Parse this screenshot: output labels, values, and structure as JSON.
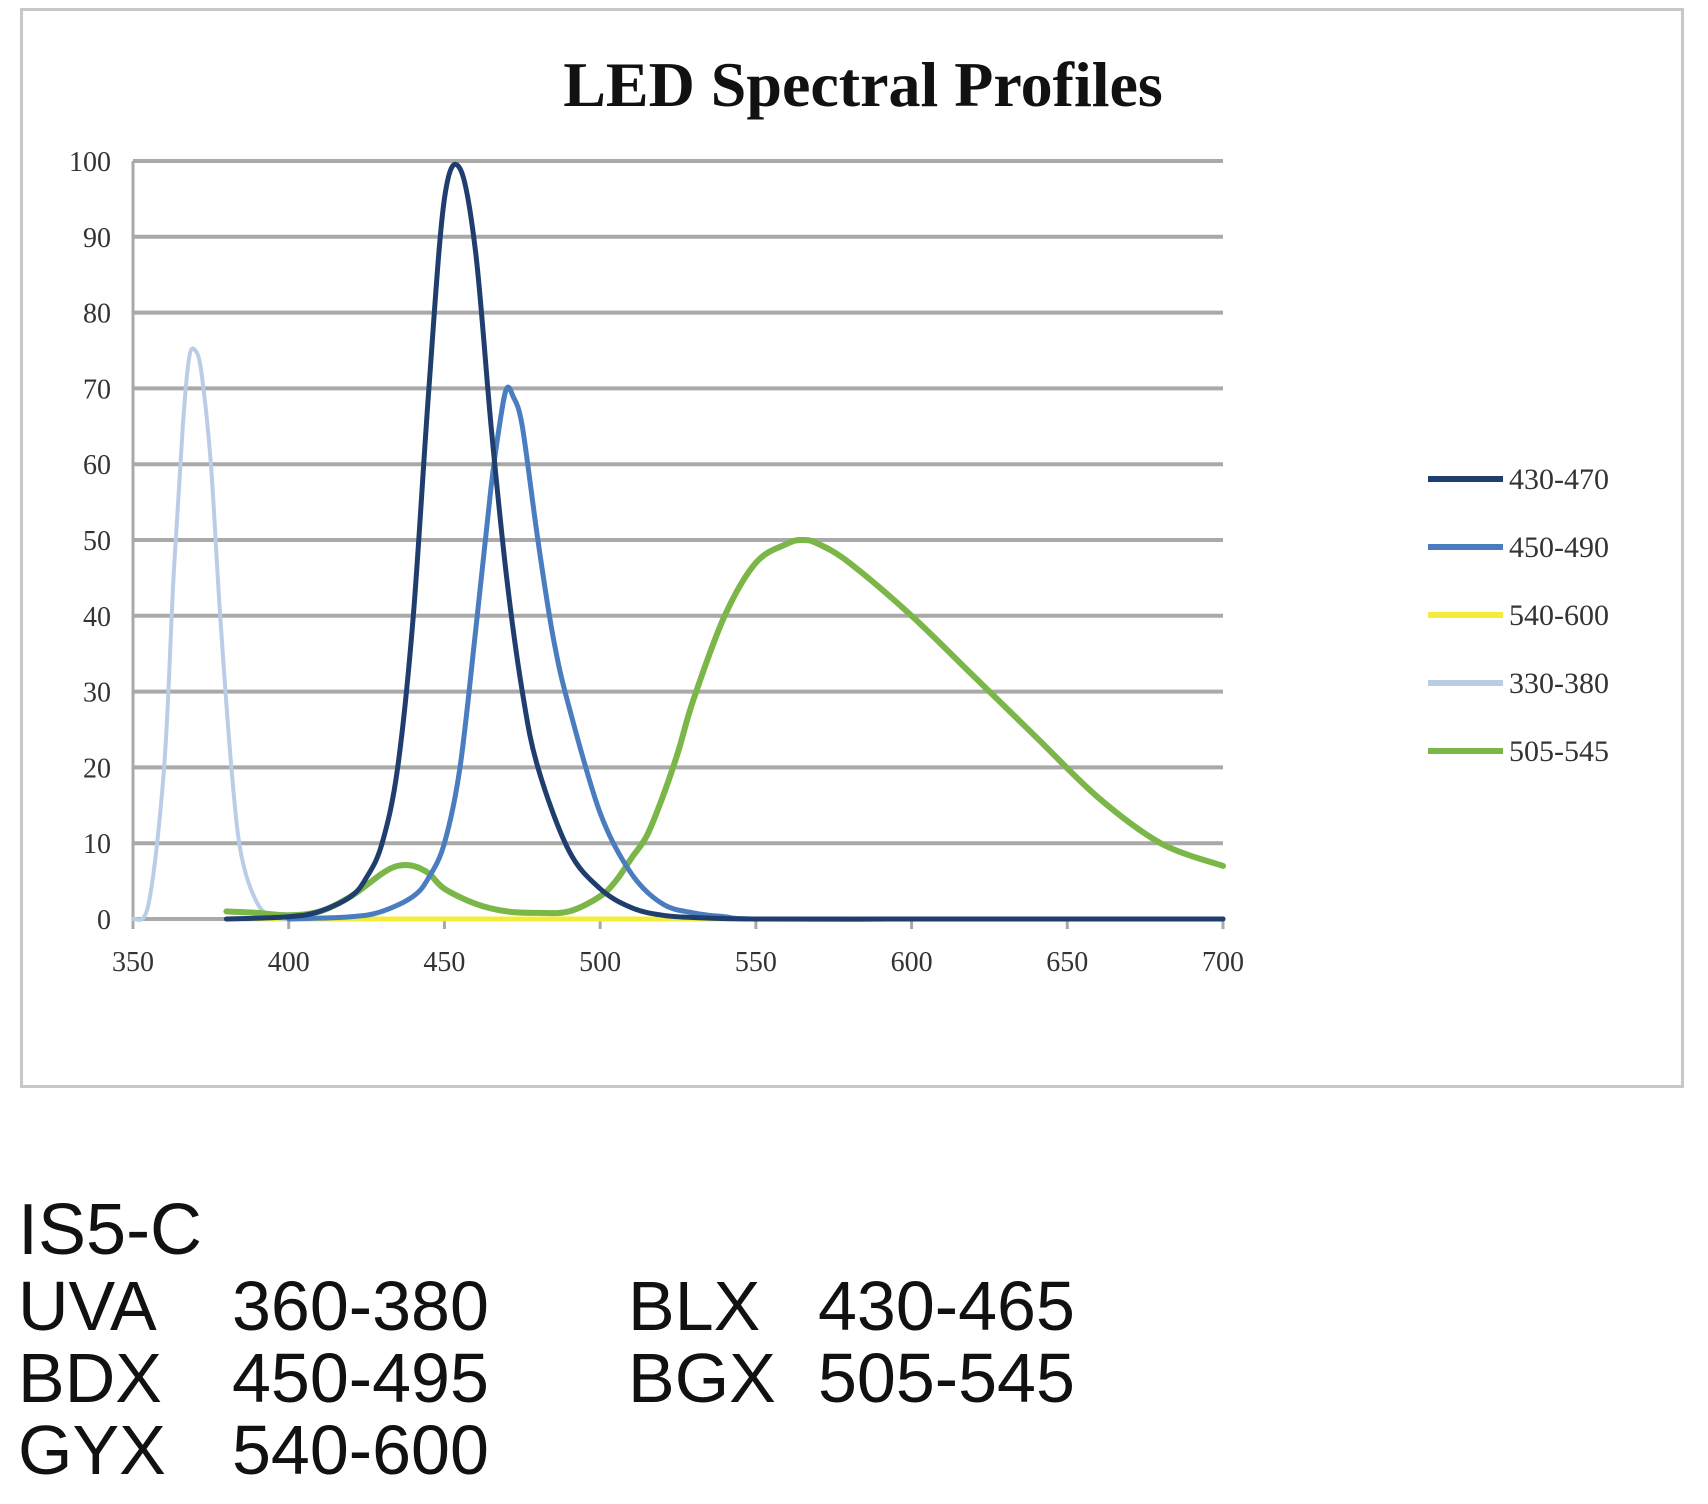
{
  "chart_data": {
    "type": "line",
    "title": "LED Spectral Profiles",
    "xlabel": "",
    "ylabel": "",
    "xlim": [
      350,
      700
    ],
    "ylim": [
      0,
      100
    ],
    "x_ticks": [
      350,
      400,
      450,
      500,
      550,
      600,
      650,
      700
    ],
    "x_tick_labels": [
      "350",
      "400",
      "450",
      "500",
      "550",
      "600",
      "650",
      "700"
    ],
    "y_ticks": [
      0,
      10,
      20,
      30,
      40,
      50,
      60,
      70,
      80,
      90,
      100
    ],
    "y_tick_labels": [
      "0",
      "10",
      "20",
      "30",
      "40",
      "50",
      "60",
      "70",
      "80",
      "90",
      "100"
    ],
    "grid": "horizontal",
    "legend_position": "right",
    "series": [
      {
        "name": "430-470",
        "color": "#1f3e6e",
        "x": [
          380,
          400,
          410,
          420,
          425,
          430,
          435,
          440,
          445,
          450,
          455,
          460,
          465,
          470,
          475,
          480,
          490,
          500,
          510,
          520,
          530,
          550,
          600,
          650,
          700
        ],
        "y": [
          0,
          0.3,
          1,
          3,
          5.5,
          10,
          20,
          40,
          70,
          95,
          99,
          88,
          65,
          45,
          30,
          20,
          9,
          4,
          1.5,
          0.5,
          0.2,
          0,
          0,
          0,
          0
        ]
      },
      {
        "name": "450-490",
        "color": "#4a7cc0",
        "x": [
          400,
          420,
          430,
          440,
          445,
          450,
          455,
          460,
          465,
          468,
          470,
          472,
          475,
          480,
          485,
          490,
          500,
          510,
          520,
          530,
          540,
          550,
          600,
          650,
          700
        ],
        "y": [
          0,
          0.3,
          1,
          3,
          5.5,
          10,
          20,
          38,
          57,
          66,
          70,
          69,
          65,
          50,
          37,
          28,
          14,
          6,
          2,
          0.8,
          0.3,
          0,
          0,
          0,
          0
        ]
      },
      {
        "name": "540-600",
        "color": "#f4ec3a",
        "x": [
          380,
          700
        ],
        "y": [
          0,
          0
        ]
      },
      {
        "name": "330-380",
        "color": "#b9cde6",
        "x": [
          350,
          355,
          360,
          363,
          366,
          368,
          370,
          372,
          375,
          378,
          382,
          385,
          390,
          395,
          400
        ],
        "y": [
          0,
          2,
          20,
          45,
          65,
          74,
          75,
          72,
          60,
          40,
          18,
          8,
          2,
          0.3,
          0
        ]
      },
      {
        "name": "505-545",
        "color": "#7ab648",
        "x": [
          380,
          390,
          400,
          410,
          420,
          430,
          435,
          440,
          445,
          450,
          460,
          470,
          480,
          490,
          500,
          505,
          510,
          515,
          520,
          525,
          530,
          540,
          550,
          560,
          565,
          570,
          580,
          600,
          620,
          640,
          660,
          680,
          700
        ],
        "y": [
          1,
          0.8,
          0.5,
          1,
          3,
          6,
          7,
          7,
          6,
          4,
          2,
          1,
          0.8,
          1,
          3,
          5,
          8,
          11,
          16,
          22,
          29,
          40,
          47,
          49.5,
          50,
          49.5,
          47,
          40,
          32,
          24,
          16,
          10,
          7
        ]
      }
    ]
  },
  "spec": {
    "title": "IS5-C",
    "rows": [
      {
        "left_label": "UVA",
        "left_value": "360-380",
        "right_label": "BLX",
        "right_value": "430-465"
      },
      {
        "left_label": "BDX",
        "left_value": "450-495",
        "right_label": "BGX",
        "right_value": "505-545"
      },
      {
        "left_label": "GYX",
        "left_value": "540-600",
        "right_label": "",
        "right_value": ""
      }
    ]
  }
}
